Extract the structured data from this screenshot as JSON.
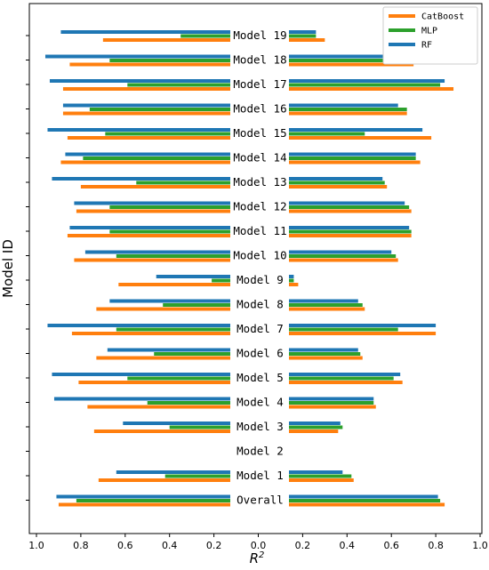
{
  "chart_data": {
    "type": "bar",
    "orientation": "horizontal-mirrored",
    "xlabel": "R²",
    "ylabel": "Model ID",
    "xlim": [
      -1.0,
      1.0
    ],
    "x_ticks": [
      "1.0",
      "0.8",
      "0.6",
      "0.4",
      "0.2",
      "0.0",
      "0.2",
      "0.4",
      "0.6",
      "0.8",
      "1.0"
    ],
    "legend": {
      "placement": "top-right",
      "entries": [
        "CatBoost",
        "MLP",
        "RF"
      ]
    },
    "colors": {
      "CatBoost": "#ff7f0e",
      "MLP": "#2ca02c",
      "RF": "#1f77b4"
    },
    "categories": [
      "Model 19",
      "Model 18",
      "Model 17",
      "Model 16",
      "Model 15",
      "Model 14",
      "Model 13",
      "Model 12",
      "Model 11",
      "Model 10",
      "Model 9",
      "Model 8",
      "Model 7",
      "Model 6",
      "Model 5",
      "Model 4",
      "Model 3",
      "Model 2",
      "Model 1",
      "Overall"
    ],
    "left_series": [
      {
        "name": "CatBoost",
        "values": [
          0.7,
          0.85,
          0.88,
          0.88,
          0.86,
          0.89,
          0.8,
          0.82,
          0.86,
          0.83,
          0.63,
          0.73,
          0.84,
          0.73,
          0.81,
          0.77,
          0.74,
          null,
          0.72,
          0.9
        ]
      },
      {
        "name": "MLP",
        "values": [
          0.35,
          0.67,
          0.59,
          0.76,
          0.69,
          0.79,
          0.55,
          0.67,
          0.67,
          0.64,
          0.21,
          0.43,
          0.64,
          0.47,
          0.59,
          0.5,
          0.4,
          null,
          0.42,
          0.82
        ]
      },
      {
        "name": "RF",
        "values": [
          0.89,
          0.96,
          0.94,
          0.88,
          0.95,
          0.87,
          0.93,
          0.83,
          0.85,
          0.78,
          0.46,
          0.67,
          0.95,
          0.68,
          0.93,
          0.92,
          0.61,
          null,
          0.64,
          0.91
        ]
      }
    ],
    "right_series": [
      {
        "name": "CatBoost",
        "values": [
          0.3,
          0.7,
          0.88,
          0.67,
          0.78,
          0.73,
          0.58,
          0.69,
          0.69,
          0.63,
          0.18,
          0.48,
          0.8,
          0.47,
          0.65,
          0.53,
          0.36,
          null,
          0.43,
          0.84
        ]
      },
      {
        "name": "MLP",
        "values": [
          0.26,
          0.67,
          0.82,
          0.67,
          0.48,
          0.71,
          0.57,
          0.68,
          0.69,
          0.62,
          0.16,
          0.47,
          0.63,
          0.46,
          0.61,
          0.52,
          0.38,
          null,
          0.42,
          0.82
        ]
      },
      {
        "name": "RF",
        "values": [
          0.26,
          0.68,
          0.84,
          0.63,
          0.74,
          0.71,
          0.56,
          0.66,
          0.68,
          0.6,
          0.16,
          0.45,
          0.8,
          0.45,
          0.64,
          0.52,
          0.37,
          null,
          0.38,
          0.81
        ]
      }
    ]
  }
}
